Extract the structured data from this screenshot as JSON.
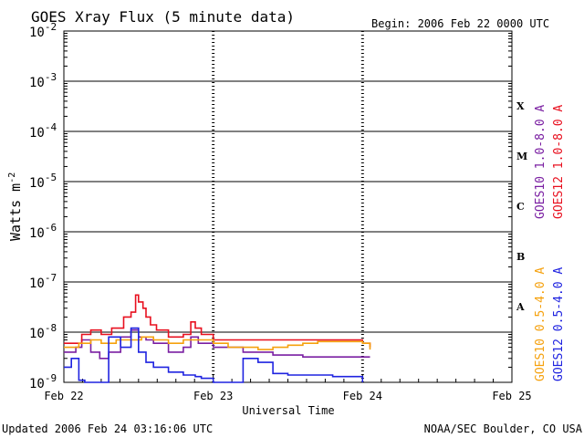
{
  "chart_data": {
    "type": "line",
    "title": "GOES Xray Flux (5 minute data)",
    "begin_label": "Begin:  2006 Feb 22 0000 UTC",
    "xlabel": "Universal Time",
    "ylabel": "Watts m",
    "ylabel_sup": "-2",
    "yscale": "log",
    "ylim": [
      1e-09,
      0.01
    ],
    "xlim": [
      0,
      3
    ],
    "x_unit": "days since 2006 Feb 22 0000 UTC",
    "y_ticks": [
      {
        "base": "10",
        "exp": "-2",
        "value": 0.01
      },
      {
        "base": "10",
        "exp": "-3",
        "value": 0.001
      },
      {
        "base": "10",
        "exp": "-4",
        "value": 0.0001
      },
      {
        "base": "10",
        "exp": "-5",
        "value": 1e-05
      },
      {
        "base": "10",
        "exp": "-6",
        "value": 1e-06
      },
      {
        "base": "10",
        "exp": "-7",
        "value": 1e-07
      },
      {
        "base": "10",
        "exp": "-8",
        "value": 1e-08
      },
      {
        "base": "10",
        "exp": "-9",
        "value": 1e-09
      }
    ],
    "x_ticks": [
      {
        "label": "Feb 22",
        "x": 0
      },
      {
        "label": "Feb 23",
        "x": 1
      },
      {
        "label": "Feb 24",
        "x": 2
      },
      {
        "label": "Feb 25",
        "x": 3
      }
    ],
    "flare_classes": [
      {
        "label": "X",
        "value": 0.00032
      },
      {
        "label": "M",
        "value": 3.2e-05
      },
      {
        "label": "C",
        "value": 3.2e-06
      },
      {
        "label": "B",
        "value": 3.2e-07
      },
      {
        "label": "A",
        "value": 3.2e-08
      }
    ],
    "grid_lines_y": [
      0.001,
      0.0001,
      1e-05,
      1e-06,
      1e-07,
      1e-08
    ],
    "legend_placement": "right, rotated vertically",
    "series": [
      {
        "name": "GOES10 1.0-8.0 A",
        "color": "#7a1fa2",
        "x": [
          0,
          0.08,
          0.12,
          0.18,
          0.24,
          0.3,
          0.38,
          0.45,
          0.5,
          0.55,
          0.6,
          0.7,
          0.8,
          0.85,
          0.9,
          1.0,
          1.2,
          1.4,
          1.6,
          1.8,
          2.0,
          2.05
        ],
        "y": [
          4e-09,
          5e-09,
          7e-09,
          4e-09,
          3e-09,
          4e-09,
          8e-09,
          1.1e-08,
          8e-09,
          7e-09,
          6e-09,
          4e-09,
          5e-09,
          8e-09,
          6e-09,
          5e-09,
          4e-09,
          3.5e-09,
          3.2e-09,
          3.2e-09,
          3.2e-09,
          3.2e-09
        ]
      },
      {
        "name": "GOES12 1.0-8.0 A",
        "color": "#e8101f",
        "x": [
          0,
          0.08,
          0.12,
          0.18,
          0.25,
          0.32,
          0.4,
          0.45,
          0.48,
          0.5,
          0.53,
          0.55,
          0.58,
          0.62,
          0.7,
          0.8,
          0.85,
          0.88,
          0.92,
          1.0,
          1.2,
          1.4,
          1.6,
          1.8,
          2.0,
          2.05
        ],
        "y": [
          6e-09,
          6e-09,
          9e-09,
          1.1e-08,
          9e-09,
          1.2e-08,
          2e-08,
          2.5e-08,
          5.5e-08,
          4e-08,
          3e-08,
          2e-08,
          1.4e-08,
          1.1e-08,
          8e-09,
          9e-09,
          1.6e-08,
          1.2e-08,
          9e-09,
          7e-09,
          7e-09,
          7e-09,
          7e-09,
          7e-09,
          6e-09,
          5e-09
        ]
      },
      {
        "name": "GOES10 0.5-4.0 A",
        "color": "#f5a10e",
        "x": [
          0,
          0.05,
          0.1,
          0.18,
          0.25,
          0.35,
          0.45,
          0.52,
          0.6,
          0.7,
          0.8,
          0.9,
          1.0,
          1.1,
          1.2,
          1.3,
          1.4,
          1.5,
          1.6,
          1.7,
          1.8,
          1.9,
          2.0,
          2.05
        ],
        "y": [
          5e-09,
          5e-09,
          6e-09,
          7e-09,
          6e-09,
          7e-09,
          7e-09,
          8e-09,
          7e-09,
          6e-09,
          7e-09,
          7e-09,
          6e-09,
          5e-09,
          5e-09,
          4.5e-09,
          5e-09,
          5.5e-09,
          6e-09,
          6.5e-09,
          6.5e-09,
          6.5e-09,
          6e-09,
          4.5e-09
        ]
      },
      {
        "name": "GOES12 0.5-4.0 A",
        "color": "#1f23e0",
        "x": [
          0,
          0.05,
          0.1,
          0.14,
          0.2,
          0.3,
          0.38,
          0.45,
          0.5,
          0.55,
          0.6,
          0.7,
          0.8,
          0.88,
          0.92,
          1.0,
          1.1,
          1.2,
          1.3,
          1.4,
          1.5,
          1.6,
          1.7,
          1.8,
          1.9,
          2.0
        ],
        "y": [
          2e-09,
          3e-09,
          1.1e-09,
          1e-09,
          1e-09,
          8e-09,
          5e-09,
          1.2e-08,
          4e-09,
          2.5e-09,
          2e-09,
          1.6e-09,
          1.4e-09,
          1.3e-09,
          1.2e-09,
          1e-09,
          1e-09,
          3e-09,
          2.5e-09,
          1.5e-09,
          1.4e-09,
          1.4e-09,
          1.4e-09,
          1.3e-09,
          1.3e-09,
          1e-09
        ]
      }
    ]
  },
  "footer": {
    "updated": "Updated 2006 Feb 24 03:16:06 UTC",
    "credit": "NOAA/SEC Boulder, CO USA"
  }
}
